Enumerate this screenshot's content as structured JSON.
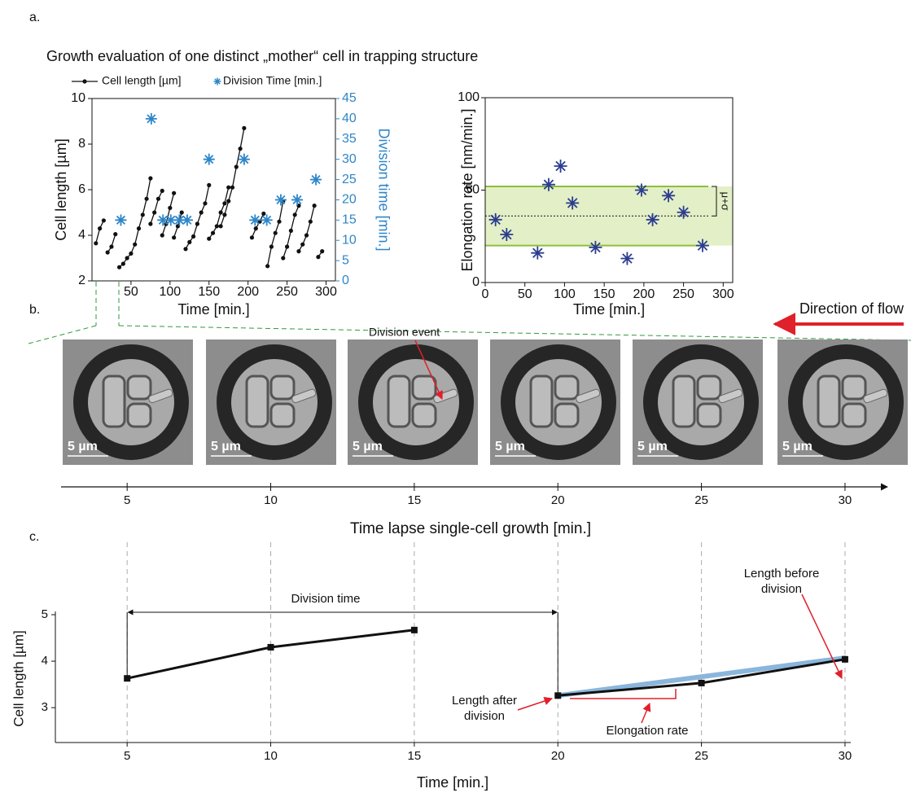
{
  "panel_labels": [
    "a.",
    "b.",
    "c."
  ],
  "heading": "Growth evaluation of one distinct „mother“ cell in trapping structure",
  "chart_data": [
    {
      "type": "line",
      "x_label": "Time [min.]",
      "y_label": "Cell length [µm]",
      "y2_label": "Division time [min.]",
      "xlim": [
        0,
        312
      ],
      "xticks": [
        50,
        100,
        150,
        200,
        250,
        300
      ],
      "ylim": [
        2,
        10
      ],
      "yticks": [
        2,
        4,
        6,
        8,
        10
      ],
      "y2lim": [
        0,
        45
      ],
      "y2ticks": [
        0,
        5,
        10,
        15,
        20,
        25,
        30,
        35,
        40,
        45
      ],
      "series": [
        {
          "name": "Cell length [µm]",
          "color": "#111111",
          "type": "line",
          "x": [
            5,
            10,
            15,
            null,
            20,
            25,
            30,
            null,
            35,
            40,
            45,
            50,
            55,
            60,
            65,
            70,
            75,
            null,
            75,
            80,
            85,
            90,
            null,
            90,
            95,
            100,
            105,
            null,
            105,
            110,
            115,
            null,
            120,
            125,
            130,
            135,
            140,
            145,
            150,
            null,
            150,
            155,
            160,
            165,
            170,
            175,
            null,
            165,
            170,
            175,
            180,
            185,
            190,
            195,
            null,
            205,
            210,
            215,
            220,
            null,
            225,
            230,
            235,
            240,
            245,
            null,
            245,
            250,
            255,
            260,
            265,
            null,
            265,
            270,
            275,
            280,
            285,
            null,
            290,
            295
          ],
          "values": [
            3.65,
            4.3,
            4.65,
            null,
            3.25,
            3.5,
            4.05,
            null,
            2.6,
            2.75,
            3.0,
            3.2,
            3.6,
            4.3,
            4.9,
            5.6,
            6.5,
            null,
            4.5,
            5.0,
            5.6,
            5.95,
            null,
            4.0,
            4.5,
            5.2,
            5.85,
            null,
            3.9,
            4.4,
            5.0,
            null,
            3.4,
            3.7,
            3.95,
            4.5,
            5.0,
            5.4,
            6.2,
            null,
            3.85,
            4.1,
            4.4,
            5.0,
            5.4,
            6.1,
            null,
            4.4,
            4.9,
            5.5,
            6.1,
            7.0,
            7.8,
            8.7,
            null,
            3.9,
            4.3,
            4.6,
            4.95,
            null,
            2.65,
            3.5,
            4.1,
            4.6,
            5.5,
            null,
            3.0,
            3.5,
            4.2,
            4.9,
            5.3,
            null,
            3.3,
            3.6,
            4.0,
            4.6,
            5.3,
            null,
            3.05,
            3.3
          ]
        },
        {
          "name": "Division Time [min.]",
          "color": "#2e86c8",
          "type": "scatter",
          "axis": "y2",
          "x": [
            37,
            76,
            91,
            101,
            112,
            122,
            150,
            195,
            209,
            224,
            242,
            263,
            287
          ],
          "values": [
            15,
            40,
            15,
            15,
            15,
            15,
            30,
            30,
            15,
            15,
            20,
            20,
            25
          ]
        }
      ]
    },
    {
      "type": "scatter",
      "x_label": "Time [min.]",
      "y_label": "Elongation rate [nm/min.]",
      "xlim": [
        0,
        312
      ],
      "xticks": [
        0,
        50,
        100,
        150,
        200,
        250,
        300
      ],
      "ylim": [
        0,
        100
      ],
      "yticks": [
        0,
        50,
        100
      ],
      "mean": 36,
      "band": [
        20,
        52
      ],
      "band_label": "μ+σ",
      "band_color": "#e3efc6",
      "band_edge": "#8dbf3c",
      "series": [
        {
          "color": "#2b3d8f",
          "x": [
            13,
            27,
            66,
            80,
            95,
            110,
            139,
            179,
            197,
            211,
            231,
            250,
            274
          ],
          "values": [
            34,
            26,
            16,
            53,
            63,
            43,
            19,
            13,
            50,
            34,
            47,
            38,
            20
          ]
        }
      ]
    },
    {
      "type": "line",
      "x_label": "Time [min.]",
      "y_label": "Cell length [µm]",
      "xlim": [
        2.5,
        30.2
      ],
      "xticks": [
        5,
        10,
        15,
        20,
        25,
        30
      ],
      "ylim": [
        2.25,
        5
      ],
      "yticks": [
        3,
        4,
        5
      ],
      "grid": true,
      "series": [
        {
          "color": "#111111",
          "type": "line",
          "x": [
            5,
            10,
            15,
            null,
            20,
            25,
            30
          ],
          "values": [
            3.63,
            4.3,
            4.67,
            null,
            3.26,
            3.53,
            4.04
          ]
        },
        {
          "color": "#8ab6dc",
          "type": "fit",
          "x": [
            20,
            30
          ],
          "values": [
            3.26,
            4.07
          ]
        }
      ],
      "annotations": [
        "Division time",
        "Length after division",
        "Elongation rate",
        "Length before division"
      ]
    }
  ],
  "time_axis": {
    "xlim": [
      2.5,
      30.2
    ],
    "ticks": [
      5,
      10,
      15,
      20,
      25,
      30
    ],
    "label": "Time lapse single-cell growth [min.]"
  },
  "flow_label": "Direction of flow",
  "division_event": "Division event",
  "micrographs": [
    {
      "scale_bar": "5 µm"
    },
    {
      "scale_bar": "5 µm"
    },
    {
      "scale_bar": "5 µm"
    },
    {
      "scale_bar": "5 µm"
    },
    {
      "scale_bar": "5 µm"
    },
    {
      "scale_bar": "5 µm"
    }
  ]
}
